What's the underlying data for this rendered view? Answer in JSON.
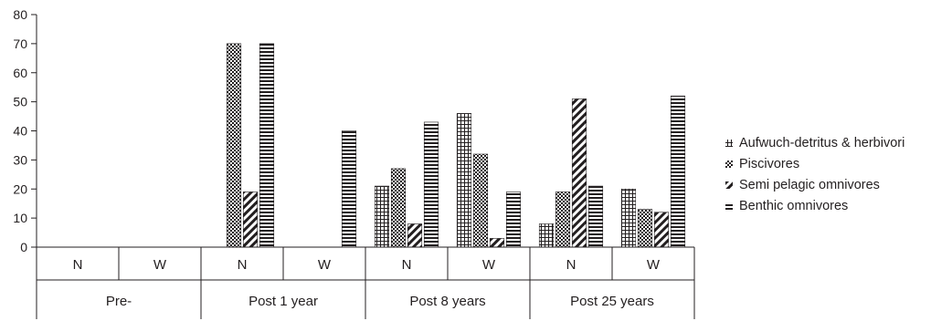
{
  "chart_data": {
    "type": "bar",
    "title": "",
    "xlabel": "",
    "ylabel": "",
    "ylim": [
      0,
      80
    ],
    "yticks": [
      "0",
      "10",
      "20",
      "30",
      "40",
      "50",
      "60",
      "70",
      "80"
    ],
    "groups": [
      {
        "label": "Pre-",
        "subcategories": [
          "N",
          "W"
        ]
      },
      {
        "label": "Post 1 year",
        "subcategories": [
          "N",
          "W"
        ]
      },
      {
        "label": "Post 8 years",
        "subcategories": [
          "N",
          "W"
        ]
      },
      {
        "label": "Post 25 years",
        "subcategories": [
          "N",
          "W"
        ]
      }
    ],
    "categories": [
      "Pre- N",
      "Pre- W",
      "Post 1 year N",
      "Post 1 year W",
      "Post 8 years N",
      "Post 8 years W",
      "Post 25 years N",
      "Post 25 years W"
    ],
    "series": [
      {
        "name": "Aufwuch-detritus & herbivori",
        "pattern": "grid",
        "values": [
          0,
          0,
          0,
          0,
          21,
          46,
          8,
          20
        ]
      },
      {
        "name": "Piscivores",
        "pattern": "checker",
        "values": [
          0,
          0,
          70,
          0,
          27,
          32,
          19,
          13
        ]
      },
      {
        "name": "Semi pelagic omnivores",
        "pattern": "diagonal",
        "values": [
          0,
          0,
          19,
          0,
          8,
          3,
          51,
          12
        ]
      },
      {
        "name": "Benthic omnivores",
        "pattern": "horizontal",
        "values": [
          0,
          0,
          70,
          40,
          43,
          19,
          21,
          52
        ]
      }
    ],
    "legend_position": "right",
    "grid": false
  }
}
